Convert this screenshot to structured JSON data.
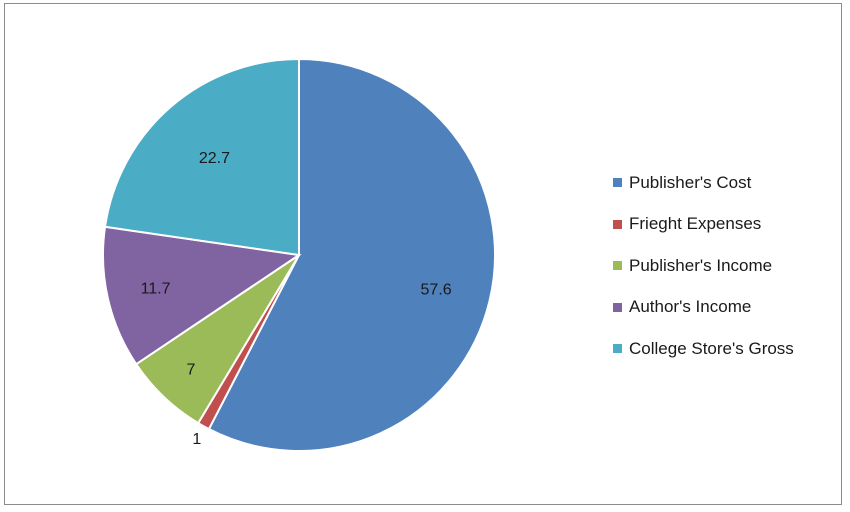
{
  "chart_data": {
    "type": "pie",
    "categories": [
      "Publisher's Cost",
      "Frieght Expenses",
      "Publisher's Income",
      "Author's Income",
      "College Store's Gross"
    ],
    "values": [
      57.6,
      1,
      7,
      11.7,
      22.7
    ],
    "data_labels": [
      "57.6",
      "1",
      "7",
      "11.7",
      "22.7"
    ],
    "colors": [
      "#4f81bd",
      "#c0504d",
      "#9bbb59",
      "#8064a2",
      "#4bacc6"
    ],
    "title": "",
    "legend_position": "right",
    "start_angle": "12 o'clock, clockwise"
  }
}
